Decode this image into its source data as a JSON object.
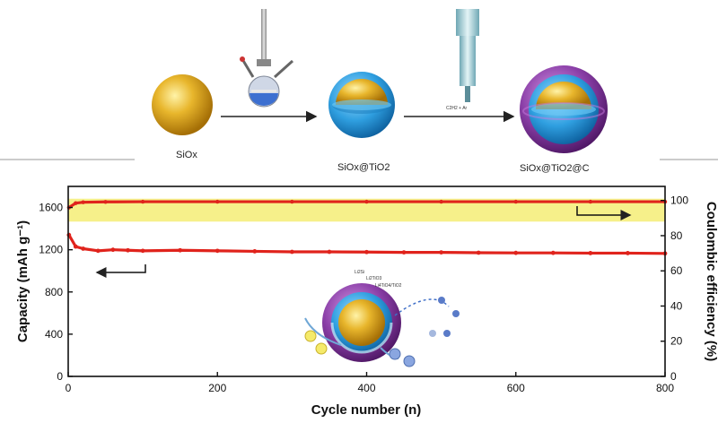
{
  "scheme": {
    "labels": {
      "core": "SiOx",
      "coated": "SiOx@TiO2",
      "final": "SiOx@TiO2@C"
    },
    "inset_labels": [
      "Li2Si",
      "Li2TiO3",
      "Li4TiO4/TiO2"
    ],
    "cvd_label": "C2H2 + Ar"
  },
  "colors": {
    "capacity_series": "#e0231c",
    "efficiency_series": "#e0231c",
    "efficiency_band": "#f6f08a",
    "core": "#e8b62c",
    "tio2_shell": "#2f9fe0",
    "carbon_shell": "#8b3fa8"
  },
  "chart_data": {
    "type": "line",
    "xlabel": "Cycle number (n)",
    "ylabel": "Capacity (mAh g⁻¹)",
    "y2label": "Coulombic efficiency (%)",
    "xlim": [
      0,
      800
    ],
    "ylim": [
      0,
      1800
    ],
    "y2lim": [
      0,
      108
    ],
    "xticks": [
      0,
      200,
      400,
      600,
      800
    ],
    "yticks": [
      0,
      400,
      800,
      1200,
      1600
    ],
    "y2ticks": [
      0,
      20,
      40,
      60,
      80,
      100
    ],
    "series": [
      {
        "axis": "left",
        "x": [
          1,
          10,
          20,
          40,
          60,
          80,
          100,
          150,
          200,
          250,
          300,
          350,
          400,
          450,
          500,
          550,
          600,
          650,
          700,
          750,
          800
        ],
        "y": [
          1340,
          1230,
          1210,
          1190,
          1200,
          1195,
          1190,
          1195,
          1190,
          1185,
          1180,
          1180,
          1178,
          1175,
          1175,
          1172,
          1170,
          1170,
          1168,
          1168,
          1165
        ]
      },
      {
        "axis": "right",
        "x": [
          1,
          10,
          20,
          50,
          100,
          200,
          300,
          400,
          500,
          600,
          700,
          800
        ],
        "y": [
          96,
          98.5,
          99,
          99.2,
          99.3,
          99.3,
          99.3,
          99.3,
          99.3,
          99.3,
          99.3,
          99.3
        ]
      }
    ]
  }
}
